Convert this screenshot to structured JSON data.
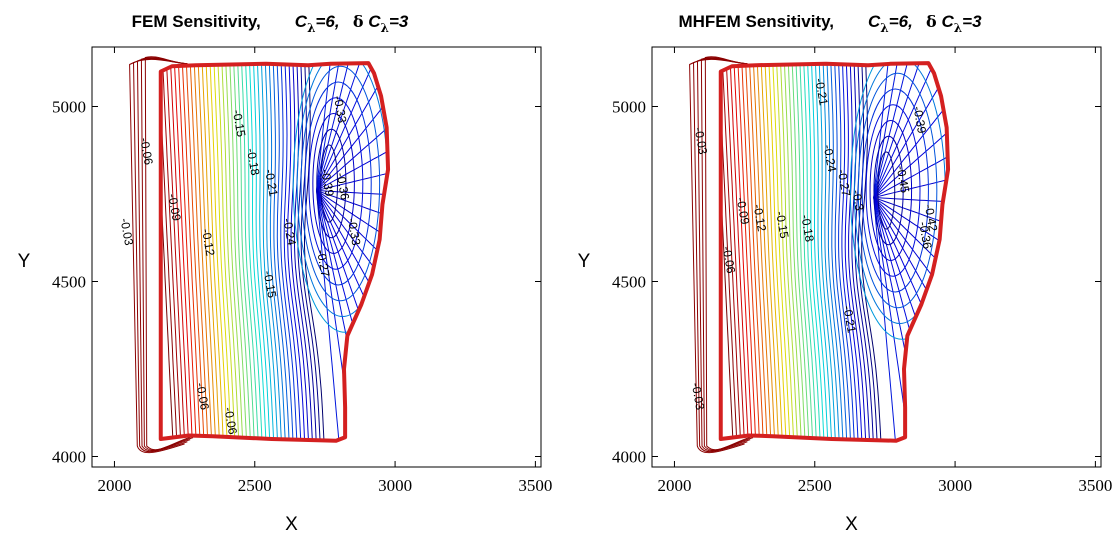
{
  "chart_data": [
    {
      "type": "contour",
      "title": {
        "prefix": "FEM Sensitivity,",
        "c_symbol": "C",
        "c_sub": "λ",
        "c_value": "=6,",
        "delta": "δ",
        "dc_symbol": "C",
        "dc_sub": "λ",
        "dc_value": "=3"
      },
      "xlabel": "X",
      "ylabel": "Y",
      "xlim": [
        1920,
        3520
      ],
      "ylim": [
        3970,
        5170
      ],
      "xticks": [
        2000,
        2500,
        3000,
        3500
      ],
      "yticks": [
        4000,
        4500,
        5000
      ],
      "min_point": {
        "x": 2720,
        "y": 4580
      },
      "colormap": "jet",
      "contour_labels": [
        {
          "text": "-0.03",
          "x": 2030,
          "y": 4640
        },
        {
          "text": "-0.06",
          "x": 2100,
          "y": 4870
        },
        {
          "text": "-0.09",
          "x": 2200,
          "y": 4710
        },
        {
          "text": "-0.12",
          "x": 2320,
          "y": 4610
        },
        {
          "text": "-0.15",
          "x": 2430,
          "y": 4950
        },
        {
          "text": "-0.18",
          "x": 2480,
          "y": 4840
        },
        {
          "text": "-0.21",
          "x": 2545,
          "y": 4780
        },
        {
          "text": "-0.24",
          "x": 2610,
          "y": 4640
        },
        {
          "text": "-0.27",
          "x": 2730,
          "y": 4550
        },
        {
          "text": "-0.33",
          "x": 2790,
          "y": 4990
        },
        {
          "text": "-0.36",
          "x": 2800,
          "y": 4770
        },
        {
          "text": "-0.39",
          "x": 2745,
          "y": 4780
        },
        {
          "text": "-0.33",
          "x": 2840,
          "y": 4640
        },
        {
          "text": "-0.15",
          "x": 2540,
          "y": 4490
        },
        {
          "text": "-0.06",
          "x": 2300,
          "y": 4170
        },
        {
          "text": "-0.06",
          "x": 2400,
          "y": 4100
        }
      ]
    },
    {
      "type": "contour",
      "title": {
        "prefix": "MHFEM Sensitivity,",
        "c_symbol": "C",
        "c_sub": "λ",
        "c_value": "=6,",
        "delta": "δ",
        "dc_symbol": "C",
        "dc_sub": "λ",
        "dc_value": "=3"
      },
      "xlabel": "X",
      "ylabel": "Y",
      "xlim": [
        1920,
        3520
      ],
      "ylim": [
        3970,
        5170
      ],
      "xticks": [
        2000,
        2500,
        3000,
        3500
      ],
      "yticks": [
        4000,
        4500,
        5000
      ],
      "min_point": {
        "x": 2710,
        "y": 4560
      },
      "colormap": "jet",
      "contour_labels": [
        {
          "text": "-0.03",
          "x": 2080,
          "y": 4900
        },
        {
          "text": "-0.06",
          "x": 2180,
          "y": 4560
        },
        {
          "text": "-0.09",
          "x": 2230,
          "y": 4700
        },
        {
          "text": "-0.12",
          "x": 2290,
          "y": 4680
        },
        {
          "text": "-0.15",
          "x": 2370,
          "y": 4660
        },
        {
          "text": "-0.18",
          "x": 2460,
          "y": 4650
        },
        {
          "text": "-0.21",
          "x": 2510,
          "y": 5040
        },
        {
          "text": "-0.24",
          "x": 2540,
          "y": 4850
        },
        {
          "text": "-0.27",
          "x": 2590,
          "y": 4780
        },
        {
          "text": "-0.3",
          "x": 2640,
          "y": 4730
        },
        {
          "text": "-0.39",
          "x": 2860,
          "y": 4960
        },
        {
          "text": "-0.45",
          "x": 2800,
          "y": 4790
        },
        {
          "text": "-0.42",
          "x": 2900,
          "y": 4680
        },
        {
          "text": "-0.36",
          "x": 2880,
          "y": 4630
        },
        {
          "text": "-0.21",
          "x": 2610,
          "y": 4390
        },
        {
          "text": "-0.03",
          "x": 2070,
          "y": 4170
        }
      ]
    }
  ]
}
